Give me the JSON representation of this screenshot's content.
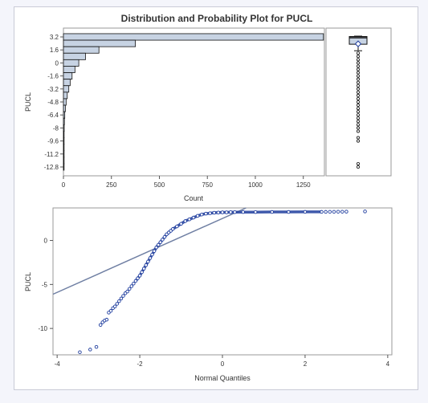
{
  "title": "Distribution and Probability Plot for PUCL",
  "colors": {
    "bar_fill": "#c7d3e3",
    "bar_stroke": "#111111",
    "box_fill": "#c7d3e3",
    "marker": "#1f3d9e",
    "ref_line": "#6f7fa3",
    "frame": "#9a9a9a"
  },
  "chart_data": [
    {
      "type": "bar",
      "orientation": "horizontal",
      "title": "Distribution and Probability Plot for PUCL",
      "ylabel": "PUCL",
      "xlabel": "Count",
      "x_ticks": [
        0,
        250,
        500,
        750,
        1000,
        1250
      ],
      "xlim": [
        0,
        1360
      ],
      "y_ticks": [
        "3.2",
        "1.6",
        "0",
        "-1.6",
        "-3.2",
        "-4.8",
        "-6.4",
        "-8",
        "-9.6",
        "-11.2",
        "-12.8"
      ],
      "bin_midpoints": [
        3.2,
        2.4,
        1.6,
        0.8,
        0,
        -0.8,
        -1.6,
        -2.4,
        -3.2,
        -4.0,
        -4.8,
        -5.6,
        -6.4,
        -7.2,
        -8.0,
        -8.8,
        -9.6,
        -10.4,
        -11.2,
        -12.0,
        -12.8
      ],
      "counts": [
        1355,
        375,
        185,
        115,
        80,
        60,
        45,
        35,
        28,
        20,
        14,
        10,
        7,
        5,
        4,
        3,
        3,
        2,
        1,
        1,
        2
      ],
      "grid": false
    },
    {
      "type": "box",
      "variable": "PUCL",
      "q1": 2.3,
      "median": 3.1,
      "q3": 3.25,
      "mean": 2.35,
      "whisker_low": 1.5,
      "whisker_high": 3.3,
      "outliers": [
        1.2,
        0.8,
        0.4,
        0.0,
        -0.4,
        -0.8,
        -1.2,
        -1.6,
        -2.0,
        -2.4,
        -2.8,
        -3.2,
        -3.6,
        -4.0,
        -4.4,
        -4.8,
        -5.2,
        -5.6,
        -6.0,
        -6.4,
        -6.8,
        -7.2,
        -7.6,
        -8.0,
        -8.4,
        -9.2,
        -9.6,
        -12.4,
        -12.8
      ]
    },
    {
      "type": "scatter",
      "ylabel": "PUCL",
      "xlabel": "Normal Quantiles",
      "xlim": [
        -4.1,
        4.1
      ],
      "ylim": [
        -13,
        3.7
      ],
      "x_ticks": [
        -4,
        -2,
        0,
        2,
        4
      ],
      "y_ticks": [
        0,
        -5,
        -10
      ],
      "reference_line": {
        "intercept": 2.5,
        "slope": 2.1
      },
      "series": [
        {
          "x": [
            -3.45,
            -3.2,
            -3.05,
            -2.95,
            -2.9,
            -2.85,
            -2.8,
            -2.75,
            -2.7,
            -2.65,
            -2.6,
            -2.55,
            -2.5,
            -2.45,
            -2.4,
            -2.35,
            -2.3,
            -2.25,
            -2.2,
            -2.15,
            -2.1,
            -2.05,
            -2.0,
            -1.95,
            -1.9,
            -1.85,
            -1.8,
            -1.75,
            -1.7,
            -1.65,
            -1.6,
            -1.55,
            -1.5,
            -1.45,
            -1.4,
            -1.35,
            -1.3,
            -1.25,
            -1.2,
            -1.1,
            -1.0,
            -0.9,
            -0.8,
            -0.7,
            -0.6,
            -0.5,
            -0.4,
            -0.3,
            -0.2,
            -0.1,
            0.0,
            0.1,
            0.2,
            0.3,
            0.5,
            0.8,
            1.2,
            1.6,
            2.0,
            2.4,
            2.5,
            2.6,
            2.7,
            2.8,
            2.9,
            3.0,
            3.45
          ],
          "y": [
            -12.7,
            -12.4,
            -12.1,
            -9.6,
            -9.3,
            -9.1,
            -9.0,
            -8.2,
            -8.0,
            -7.7,
            -7.5,
            -7.2,
            -6.9,
            -6.6,
            -6.3,
            -6.0,
            -5.8,
            -5.5,
            -5.2,
            -4.9,
            -4.6,
            -4.3,
            -4.0,
            -3.6,
            -3.2,
            -2.8,
            -2.4,
            -2.0,
            -1.6,
            -1.2,
            -0.8,
            -0.5,
            -0.2,
            0.1,
            0.4,
            0.7,
            0.9,
            1.1,
            1.3,
            1.6,
            1.9,
            2.2,
            2.4,
            2.6,
            2.8,
            2.95,
            3.05,
            3.1,
            3.15,
            3.18,
            3.2,
            3.2,
            3.22,
            3.22,
            3.23,
            3.23,
            3.24,
            3.24,
            3.25,
            3.25,
            3.25,
            3.26,
            3.26,
            3.27,
            3.27,
            3.28,
            3.3
          ]
        }
      ],
      "grid": false
    }
  ]
}
